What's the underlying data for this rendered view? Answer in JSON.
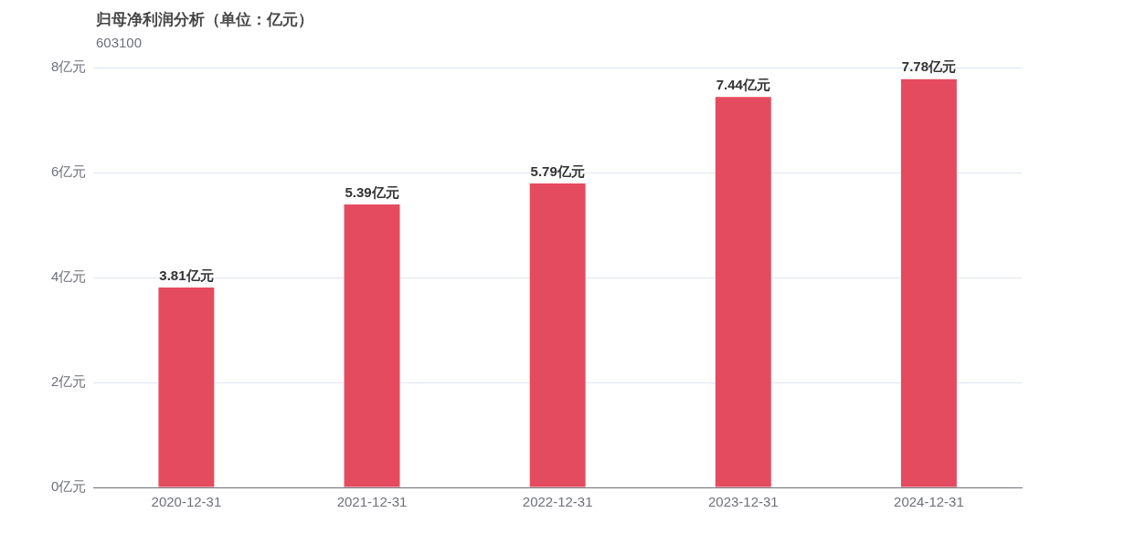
{
  "chart_data": {
    "type": "bar",
    "title": "归母净利润分析（单位：亿元）",
    "subtitle": "603100",
    "categories": [
      "2020-12-31",
      "2021-12-31",
      "2022-12-31",
      "2023-12-31",
      "2024-12-31"
    ],
    "values": [
      3.81,
      5.39,
      5.79,
      7.44,
      7.78
    ],
    "color": "#e54b5e",
    "value_labels": [
      "3.81亿元",
      "5.39亿元",
      "5.79亿元",
      "7.44亿元",
      "7.78亿元"
    ],
    "ylim": [
      0,
      8
    ],
    "yticks": [
      {
        "value": 0,
        "label": "0亿元"
      },
      {
        "value": 2,
        "label": "2亿元"
      },
      {
        "value": 4,
        "label": "4亿元"
      },
      {
        "value": 6,
        "label": "6亿元"
      },
      {
        "value": 8,
        "label": "8亿元"
      }
    ],
    "grid": "y",
    "legend": false
  }
}
